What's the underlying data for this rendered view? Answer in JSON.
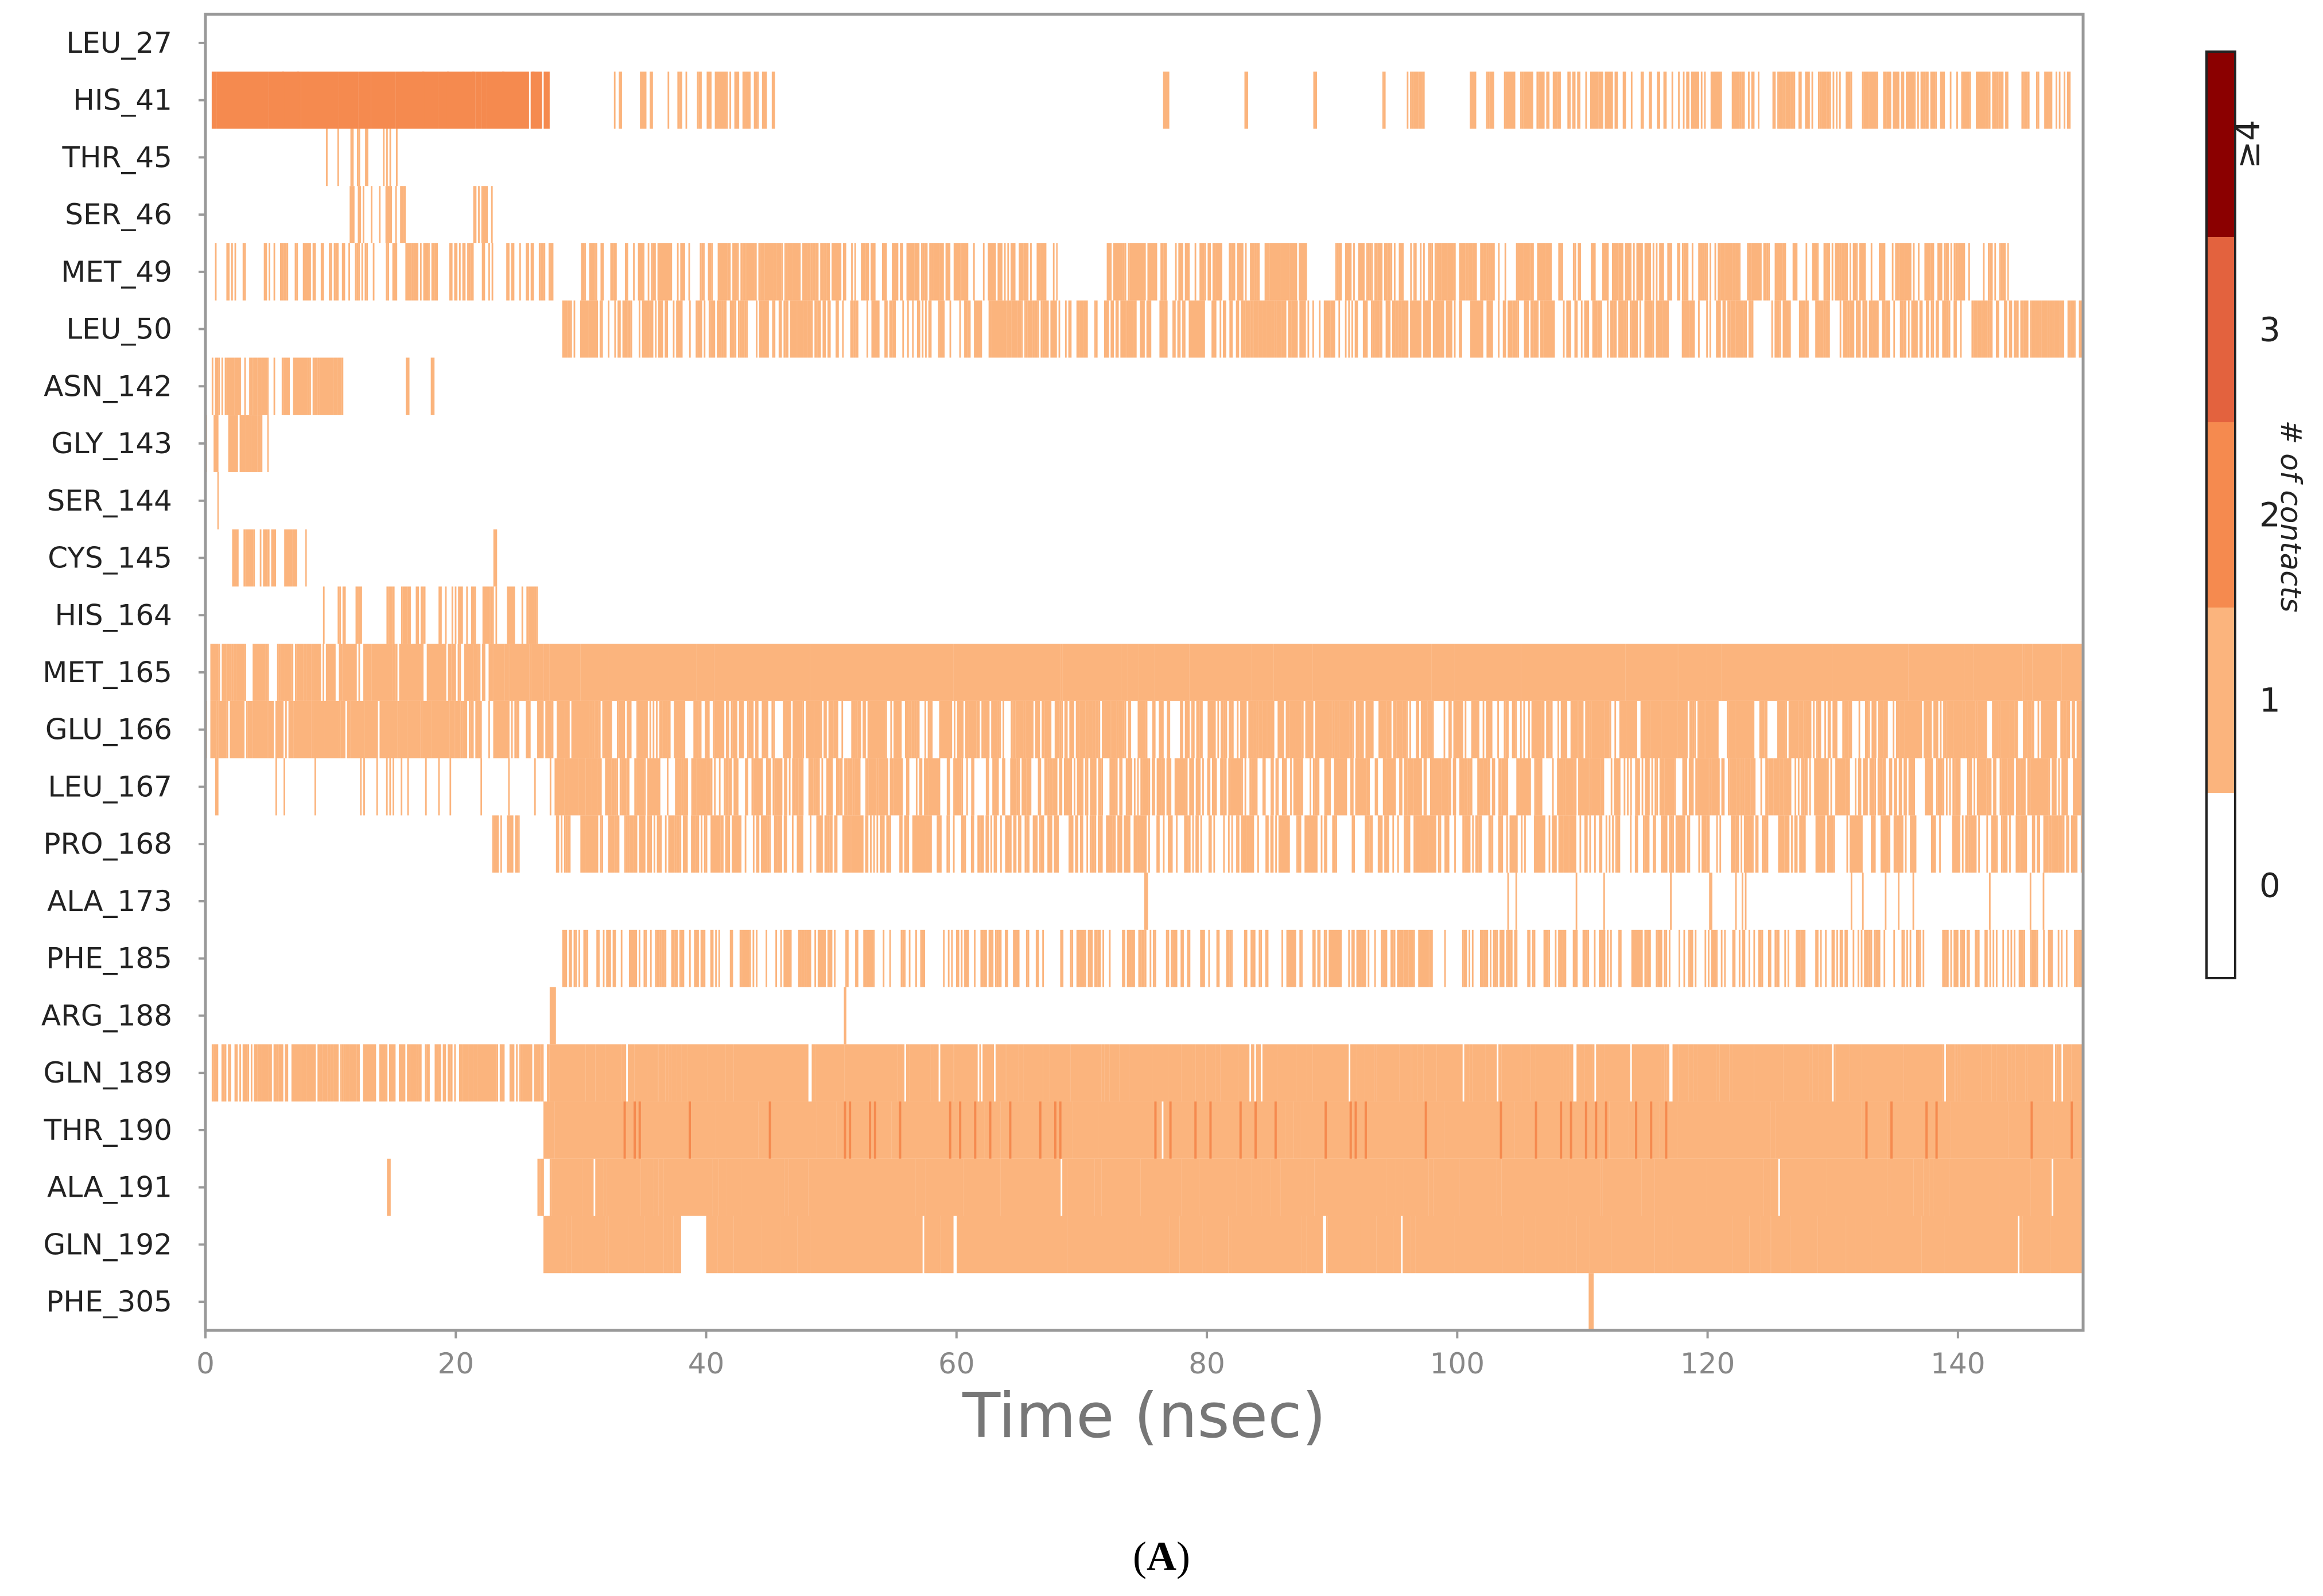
{
  "chart_data": {
    "type": "heatmap",
    "xlabel": "Time (nsec)",
    "xlim": [
      0,
      150
    ],
    "x_ticks": [
      0,
      20,
      40,
      60,
      80,
      100,
      120,
      140
    ],
    "rows": [
      {
        "label": "LEU_27",
        "segments": []
      },
      {
        "label": "HIS_41",
        "segments": [
          [
            0.5,
            27.5,
            0.92,
            2
          ],
          [
            32.5,
            45.5,
            0.32,
            1
          ],
          [
            76.5,
            77,
            1,
            1
          ],
          [
            83,
            83.3,
            1,
            1
          ],
          [
            88.5,
            88.8,
            1,
            1
          ],
          [
            93.5,
            97.5,
            0.35,
            1
          ],
          [
            101,
            149,
            0.45,
            1
          ]
        ]
      },
      {
        "label": "THR_45",
        "segments": [
          [
            9.5,
            15.5,
            0.35,
            1
          ]
        ]
      },
      {
        "label": "SER_46",
        "segments": [
          [
            11,
            16,
            0.3,
            1
          ],
          [
            21,
            23,
            0.3,
            1
          ]
        ]
      },
      {
        "label": "MET_49",
        "segments": [
          [
            0.5,
            28,
            0.3,
            1
          ],
          [
            30,
            68,
            0.5,
            1
          ],
          [
            72,
            88,
            0.55,
            1
          ],
          [
            90,
            144,
            0.5,
            1
          ]
        ]
      },
      {
        "label": "LEU_50",
        "segments": [
          [
            28.5,
            150,
            0.5,
            1
          ]
        ]
      },
      {
        "label": "ASN_142",
        "segments": [
          [
            0.5,
            11,
            0.55,
            1
          ],
          [
            16,
            16.3,
            1,
            1
          ],
          [
            18,
            18.3,
            1,
            1
          ]
        ]
      },
      {
        "label": "GLY_143",
        "segments": [
          [
            0,
            5,
            0.4,
            1
          ]
        ]
      },
      {
        "label": "SER_144",
        "segments": [
          [
            0.3,
            1,
            0.6,
            1
          ]
        ]
      },
      {
        "label": "CYS_145",
        "segments": [
          [
            2,
            8,
            0.45,
            1
          ],
          [
            23,
            23.3,
            1,
            1
          ]
        ]
      },
      {
        "label": "HIS_164",
        "segments": [
          [
            9,
            27,
            0.3,
            1
          ]
        ]
      },
      {
        "label": "MET_165",
        "segments": [
          [
            0,
            27.5,
            0.65,
            1
          ],
          [
            27.5,
            150,
            0.96,
            1
          ]
        ]
      },
      {
        "label": "GLU_166",
        "segments": [
          [
            0,
            20,
            0.75,
            1
          ],
          [
            20,
            150,
            0.55,
            1
          ]
        ]
      },
      {
        "label": "LEU_167",
        "segments": [
          [
            0,
            27,
            0.08,
            1
          ],
          [
            27.5,
            150,
            0.55,
            1
          ]
        ]
      },
      {
        "label": "PRO_168",
        "segments": [
          [
            22,
            25,
            0.3,
            1
          ],
          [
            28,
            150,
            0.45,
            1
          ]
        ]
      },
      {
        "label": "ALA_173",
        "segments": [
          [
            75,
            75.3,
            1,
            1
          ],
          [
            104,
            148,
            0.08,
            1
          ]
        ]
      },
      {
        "label": "PHE_185",
        "segments": [
          [
            28.5,
            150,
            0.35,
            1
          ]
        ]
      },
      {
        "label": "ARG_188",
        "segments": [
          [
            27.5,
            28,
            1,
            1
          ],
          [
            51,
            51.2,
            1,
            1
          ]
        ]
      },
      {
        "label": "GLN_189",
        "segments": [
          [
            0.5,
            27.5,
            0.6,
            1
          ],
          [
            27.5,
            150,
            0.85,
            1
          ]
        ]
      },
      {
        "label": "THR_190",
        "segments": [
          [
            27,
            150,
            0.96,
            1
          ]
        ]
      },
      {
        "label": "ALA_191",
        "segments": [
          [
            14.5,
            14.8,
            1,
            1
          ],
          [
            26,
            27.5,
            0.4,
            1
          ],
          [
            27.5,
            150,
            0.93,
            1
          ]
        ]
      },
      {
        "label": "GLN_192",
        "segments": [
          [
            27,
            38,
            0.9,
            1
          ],
          [
            40,
            150,
            0.93,
            1
          ]
        ]
      },
      {
        "label": "PHE_305",
        "segments": [
          [
            110.5,
            110.9,
            1,
            1
          ]
        ]
      }
    ],
    "colorbar": {
      "label": "# of contacts",
      "tick_labels": [
        "0",
        "1",
        "2",
        "3",
        "≥4"
      ],
      "colors": [
        "#ffffff",
        "#fbb47d",
        "#f58a4f",
        "#e3623e",
        "#8b0000"
      ]
    },
    "grid": false
  },
  "caption": {
    "open": "(",
    "letter": "A",
    "close": ")"
  }
}
